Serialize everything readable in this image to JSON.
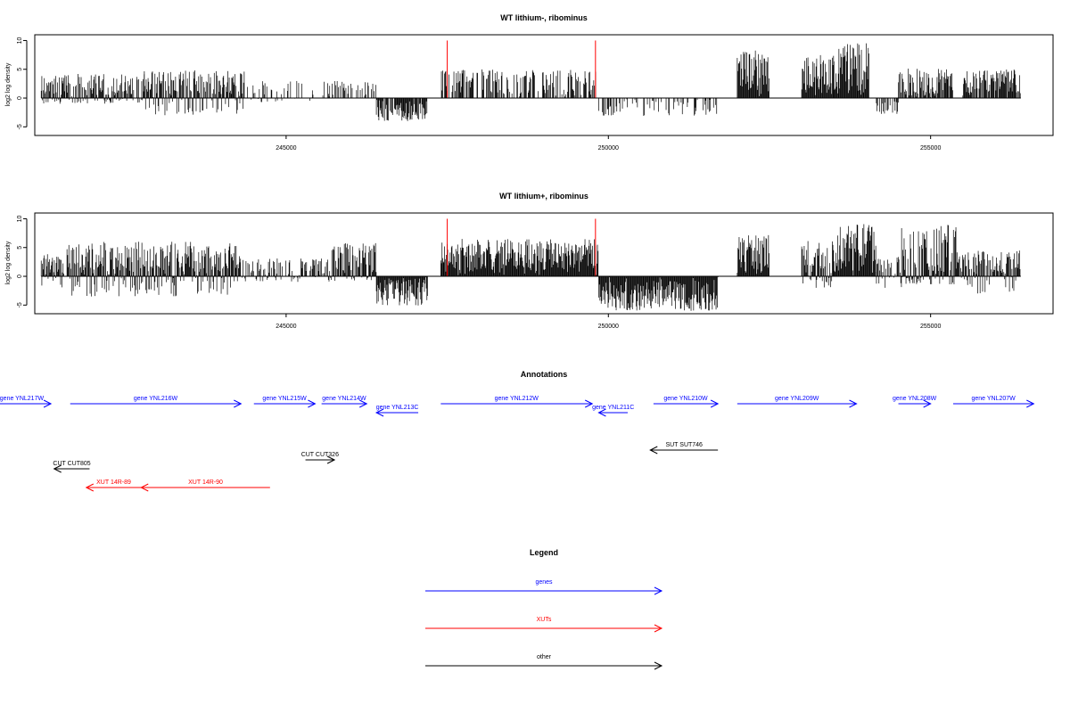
{
  "chart_data": [
    {
      "type": "bar",
      "title": "WT lithium-, ribominus",
      "ylabel": "log2 log density",
      "xlim": [
        241100,
        256900
      ],
      "ylim": [
        -6.5,
        11
      ],
      "xticks": [
        245000,
        250000,
        255000
      ],
      "xtick_labels": [
        "245000",
        "250000",
        "255000"
      ],
      "yticks": [
        -5,
        0,
        5,
        10
      ],
      "ytick_labels": [
        "-5",
        "0",
        "5",
        "10"
      ],
      "markers": [
        247500,
        249800
      ],
      "signal": {
        "segments": [
          {
            "start": 241200,
            "end": 242800,
            "max": 4.2,
            "min": -1.0,
            "density": 0.9
          },
          {
            "start": 242800,
            "end": 244350,
            "max": 4.8,
            "min": -3.0,
            "density": 0.9
          },
          {
            "start": 244400,
            "end": 245500,
            "max": 3.2,
            "min": -0.8,
            "density": 0.25
          },
          {
            "start": 245550,
            "end": 246400,
            "max": 3.0,
            "min": 0,
            "density": 0.3
          },
          {
            "start": 246400,
            "end": 247200,
            "max": 0,
            "min": -4.0,
            "density": 0.9
          },
          {
            "start": 247400,
            "end": 249850,
            "max": 5.0,
            "min": 0,
            "density": 0.55
          },
          {
            "start": 249850,
            "end": 251700,
            "max": 0,
            "min": -3.1,
            "density": 0.35
          },
          {
            "start": 252000,
            "end": 252500,
            "max": 8.5,
            "min": 0,
            "density": 1.0
          },
          {
            "start": 253000,
            "end": 253500,
            "max": 7.5,
            "min": 0,
            "density": 1.0
          },
          {
            "start": 253500,
            "end": 254050,
            "max": 9.6,
            "min": 0,
            "density": 1.0
          },
          {
            "start": 254100,
            "end": 254500,
            "max": 0,
            "min": -2.8,
            "density": 0.4
          },
          {
            "start": 254500,
            "end": 255350,
            "max": 5.2,
            "min": 0,
            "density": 0.9
          },
          {
            "start": 255500,
            "end": 256400,
            "max": 5.0,
            "min": 0,
            "density": 0.9
          }
        ]
      }
    },
    {
      "type": "bar",
      "title": "WT lithium+, ribominus",
      "ylabel": "log2 log density",
      "xlim": [
        241100,
        256900
      ],
      "ylim": [
        -6.5,
        11
      ],
      "xticks": [
        245000,
        250000,
        255000
      ],
      "xtick_labels": [
        "245000",
        "250000",
        "255000"
      ],
      "yticks": [
        -5,
        0,
        5,
        10
      ],
      "ytick_labels": [
        "-5",
        "0",
        "5",
        "10"
      ],
      "markers": [
        247500,
        249800
      ],
      "signal": {
        "segments": [
          {
            "start": 241200,
            "end": 241550,
            "max": 4.0,
            "min": -2.0,
            "density": 1.0
          },
          {
            "start": 241600,
            "end": 244300,
            "max": 6.0,
            "min": -3.5,
            "density": 1.0
          },
          {
            "start": 244300,
            "end": 245700,
            "max": 3.2,
            "min": -1.0,
            "density": 0.6
          },
          {
            "start": 245700,
            "end": 246400,
            "max": 5.8,
            "min": -0.8,
            "density": 0.9
          },
          {
            "start": 246400,
            "end": 247200,
            "max": 0,
            "min": -5.2,
            "density": 1.0
          },
          {
            "start": 247400,
            "end": 249850,
            "max": 6.5,
            "min": 0,
            "density": 1.0
          },
          {
            "start": 249850,
            "end": 251700,
            "max": 0,
            "min": -6.0,
            "density": 1.0
          },
          {
            "start": 252000,
            "end": 252500,
            "max": 7.2,
            "min": 0,
            "density": 1.0
          },
          {
            "start": 253000,
            "end": 253500,
            "max": 6.5,
            "min": -2.0,
            "density": 1.0
          },
          {
            "start": 253500,
            "end": 254150,
            "max": 9.2,
            "min": 0,
            "density": 1.0
          },
          {
            "start": 254150,
            "end": 254550,
            "max": 3.5,
            "min": -2.0,
            "density": 0.7
          },
          {
            "start": 254550,
            "end": 255400,
            "max": 9.0,
            "min": -1.5,
            "density": 1.0
          },
          {
            "start": 255400,
            "end": 256400,
            "max": 4.5,
            "min": -3.0,
            "density": 0.9
          }
        ]
      }
    }
  ],
  "annotations": {
    "title": "Annotations",
    "items": [
      {
        "label": "gene YNL217W",
        "start": 240500,
        "end": 241350,
        "strand": "+",
        "row": 0,
        "class": "gene",
        "label_align": "end"
      },
      {
        "label": "gene YNL216W",
        "start": 241650,
        "end": 244300,
        "strand": "+",
        "row": 0,
        "class": "gene"
      },
      {
        "label": "gene YNL215W",
        "start": 244500,
        "end": 245450,
        "strand": "+",
        "row": 0,
        "class": "gene"
      },
      {
        "label": "gene YNL214W",
        "start": 245550,
        "end": 246250,
        "strand": "+",
        "row": 0,
        "class": "gene"
      },
      {
        "label": "gene YNL213C",
        "start": 246400,
        "end": 247050,
        "strand": "-",
        "row": 1,
        "class": "gene"
      },
      {
        "label": "gene YNL212W",
        "start": 247400,
        "end": 249750,
        "strand": "+",
        "row": 0,
        "class": "gene"
      },
      {
        "label": "gene YNL211C",
        "start": 249850,
        "end": 250300,
        "strand": "-",
        "row": 1,
        "class": "gene"
      },
      {
        "label": "gene YNL210W",
        "start": 250700,
        "end": 251700,
        "strand": "+",
        "row": 0,
        "class": "gene"
      },
      {
        "label": "gene YNL209W",
        "start": 252000,
        "end": 253850,
        "strand": "+",
        "row": 0,
        "class": "gene"
      },
      {
        "label": "gene YNL208W",
        "start": 254500,
        "end": 255000,
        "strand": "+",
        "row": 0,
        "class": "gene"
      },
      {
        "label": "gene YNL207W",
        "start": 255350,
        "end": 256600,
        "strand": "+",
        "row": 0,
        "class": "gene"
      },
      {
        "label": "SUT SUT746",
        "start": 250650,
        "end": 251700,
        "strand": "-",
        "row": 2,
        "class": "other"
      },
      {
        "label": "CUT CUT326",
        "start": 245300,
        "end": 245750,
        "strand": "+",
        "row": 3,
        "class": "other"
      },
      {
        "label": "CUT CUT805",
        "start": 241400,
        "end": 241950,
        "strand": "-",
        "row": 4,
        "class": "other"
      },
      {
        "label": "XUT 14R-89",
        "start": 241900,
        "end": 242750,
        "strand": "-",
        "row": 5,
        "class": "xut"
      },
      {
        "label": "XUT 14R-90",
        "start": 242750,
        "end": 244750,
        "strand": "-",
        "row": 5,
        "class": "xut"
      }
    ]
  },
  "legend": {
    "title": "Legend",
    "items": [
      {
        "label": "genes",
        "class": "gene"
      },
      {
        "label": "XUTs",
        "class": "xut"
      },
      {
        "label": "other",
        "class": "other"
      }
    ]
  },
  "colors": {
    "gene": "#0000ff",
    "xut": "#ff0000",
    "other": "#000000",
    "marker": "#ff0000",
    "signal": "#000000",
    "axis": "#000000"
  }
}
